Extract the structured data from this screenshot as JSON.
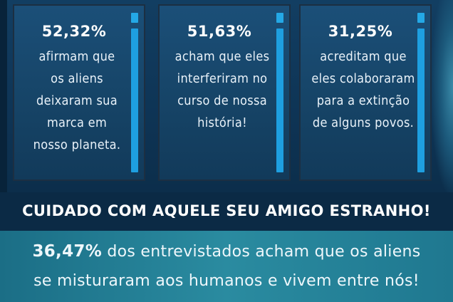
{
  "stats": [
    {
      "percent": "52,32%",
      "lines": [
        "afirmam que",
        "os aliens",
        "deixaram sua",
        "marca em",
        "nosso planeta."
      ]
    },
    {
      "percent": "51,63%",
      "lines": [
        "acham que eles",
        "interferiram no",
        "curso de nossa",
        "história!"
      ]
    },
    {
      "percent": "31,25%",
      "lines": [
        "acreditam que",
        "eles colaboraram",
        "para a extinção",
        "de alguns povos."
      ]
    }
  ],
  "warning": "CUIDADO COM AQUELE SEU AMIGO ESTRANHO!",
  "footer": {
    "percent": "36,47%",
    "line1_rest": " dos entrevistados acham que os aliens",
    "line2": "se misturaram aos humanos e vivem entre nós!"
  },
  "colors": {
    "accent": "#1e9fe0",
    "panel": "#164467",
    "band": "#2a8ba0"
  },
  "icons": {
    "panel_icon": "info-icon"
  }
}
